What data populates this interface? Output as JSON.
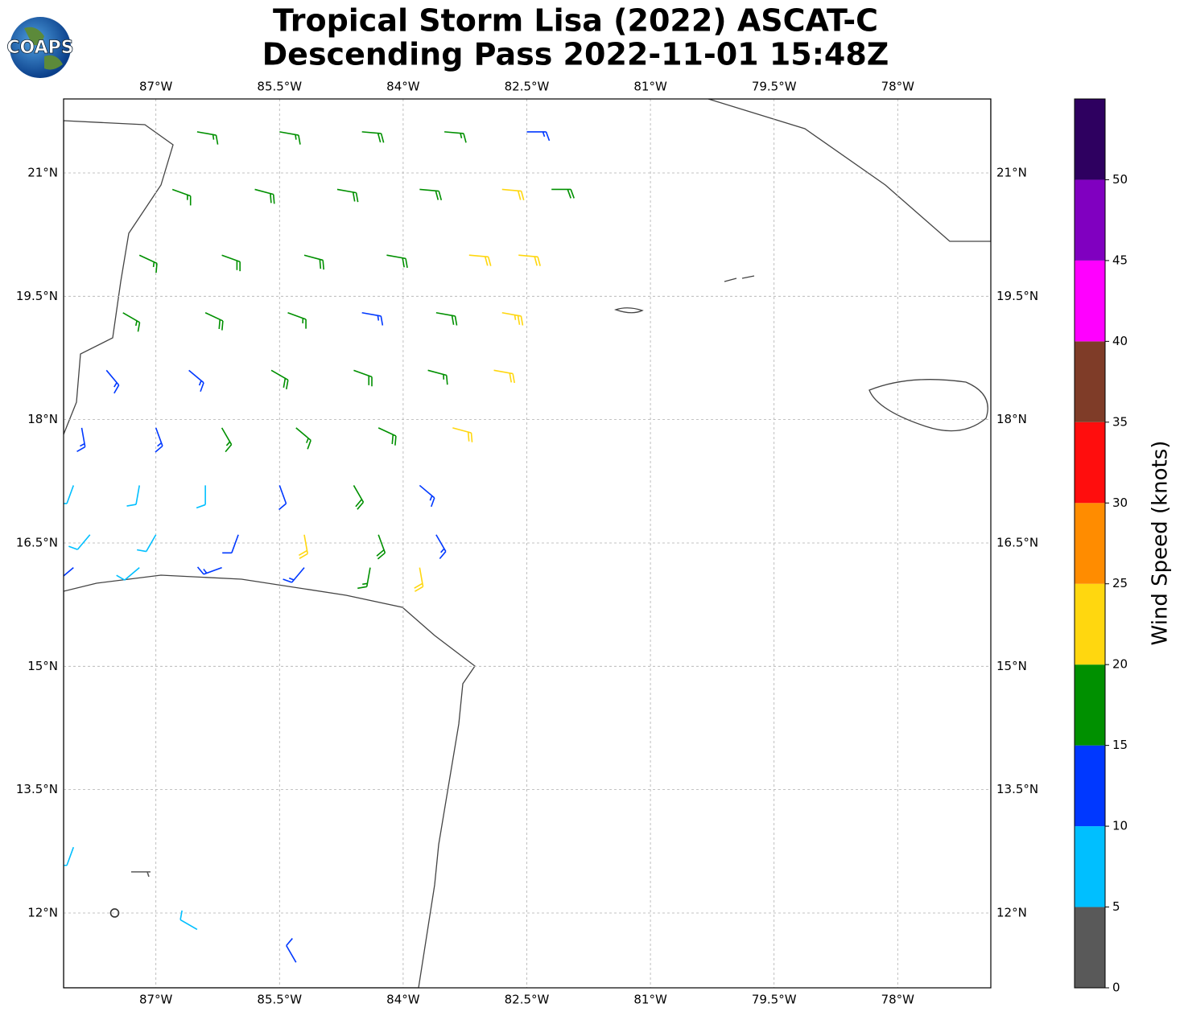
{
  "chart_data": {
    "type": "barbs",
    "title": "Tropical Storm Lisa (2022) ASCAT-C",
    "subtitle": "Descending Pass 2022-11-01 15:48Z",
    "logo_text": "COAPS",
    "xlim": [
      -88.12,
      -76.87
    ],
    "ylim": [
      11.09,
      21.9
    ],
    "xticks": [
      {
        "value": -87,
        "label": "87°W"
      },
      {
        "value": -85.5,
        "label": "85.5°W"
      },
      {
        "value": -84,
        "label": "84°W"
      },
      {
        "value": -82.5,
        "label": "82.5°W"
      },
      {
        "value": -81,
        "label": "81°W"
      },
      {
        "value": -79.5,
        "label": "79.5°W"
      },
      {
        "value": -78,
        "label": "78°W"
      }
    ],
    "yticks": [
      {
        "value": 21,
        "label": "21°N"
      },
      {
        "value": 19.5,
        "label": "19.5°N"
      },
      {
        "value": 18,
        "label": "18°N"
      },
      {
        "value": 16.5,
        "label": "16.5°N"
      },
      {
        "value": 15,
        "label": "15°N"
      },
      {
        "value": 13.5,
        "label": "13.5°N"
      },
      {
        "value": 12,
        "label": "12°N"
      }
    ],
    "grid": true,
    "colorbar": {
      "label": "Wind Speed (knots)",
      "lim": [
        0,
        55
      ],
      "ticks": [
        0,
        5,
        10,
        15,
        20,
        25,
        30,
        35,
        40,
        45,
        50
      ],
      "colors": [
        "#595959",
        "#00bfff",
        "#0038ff",
        "#009000",
        "#ffd70f",
        "#ff8c00",
        "#ff0d0d",
        "#7f3c28",
        "#ff00ff",
        "#8000c0",
        "#2e0060"
      ]
    },
    "barbs": [
      {
        "lon": -86.5,
        "lat": 21.5,
        "speed": 16,
        "dir": 100
      },
      {
        "lon": -85.5,
        "lat": 21.5,
        "speed": 17,
        "dir": 100
      },
      {
        "lon": -84.5,
        "lat": 21.5,
        "speed": 18,
        "dir": 95
      },
      {
        "lon": -83.5,
        "lat": 21.5,
        "speed": 17,
        "dir": 95
      },
      {
        "lon": -82.5,
        "lat": 21.5,
        "speed": 14,
        "dir": 90
      },
      {
        "lon": -86.8,
        "lat": 20.8,
        "speed": 17,
        "dir": 110
      },
      {
        "lon": -85.8,
        "lat": 20.8,
        "speed": 18,
        "dir": 105
      },
      {
        "lon": -84.8,
        "lat": 20.8,
        "speed": 18,
        "dir": 100
      },
      {
        "lon": -83.8,
        "lat": 20.8,
        "speed": 19,
        "dir": 95
      },
      {
        "lon": -82.8,
        "lat": 20.8,
        "speed": 21,
        "dir": 95
      },
      {
        "lon": -82.2,
        "lat": 20.8,
        "speed": 18,
        "dir": 90
      },
      {
        "lon": -87.2,
        "lat": 20.0,
        "speed": 16,
        "dir": 115
      },
      {
        "lon": -86.2,
        "lat": 20.0,
        "speed": 18,
        "dir": 110
      },
      {
        "lon": -85.2,
        "lat": 20.0,
        "speed": 18,
        "dir": 105
      },
      {
        "lon": -84.2,
        "lat": 20.0,
        "speed": 19,
        "dir": 100
      },
      {
        "lon": -83.2,
        "lat": 20.0,
        "speed": 20,
        "dir": 95
      },
      {
        "lon": -82.6,
        "lat": 20.0,
        "speed": 22,
        "dir": 95
      },
      {
        "lon": -87.4,
        "lat": 19.3,
        "speed": 17,
        "dir": 120
      },
      {
        "lon": -86.4,
        "lat": 19.3,
        "speed": 18,
        "dir": 115
      },
      {
        "lon": -85.4,
        "lat": 19.3,
        "speed": 17,
        "dir": 110
      },
      {
        "lon": -84.5,
        "lat": 19.3,
        "speed": 13,
        "dir": 100
      },
      {
        "lon": -83.6,
        "lat": 19.3,
        "speed": 19,
        "dir": 100
      },
      {
        "lon": -82.8,
        "lat": 19.3,
        "speed": 23,
        "dir": 100
      },
      {
        "lon": -87.6,
        "lat": 18.6,
        "speed": 13,
        "dir": 140
      },
      {
        "lon": -86.6,
        "lat": 18.6,
        "speed": 14,
        "dir": 130
      },
      {
        "lon": -85.6,
        "lat": 18.6,
        "speed": 18,
        "dir": 120
      },
      {
        "lon": -84.6,
        "lat": 18.6,
        "speed": 18,
        "dir": 110
      },
      {
        "lon": -83.7,
        "lat": 18.6,
        "speed": 17,
        "dir": 105
      },
      {
        "lon": -82.9,
        "lat": 18.6,
        "speed": 22,
        "dir": 100
      },
      {
        "lon": -87.9,
        "lat": 17.9,
        "speed": 13,
        "dir": 170
      },
      {
        "lon": -87.0,
        "lat": 17.9,
        "speed": 13,
        "dir": 160
      },
      {
        "lon": -86.2,
        "lat": 17.9,
        "speed": 15,
        "dir": 150
      },
      {
        "lon": -85.3,
        "lat": 17.9,
        "speed": 17,
        "dir": 130
      },
      {
        "lon": -84.3,
        "lat": 17.9,
        "speed": 18,
        "dir": 115
      },
      {
        "lon": -83.4,
        "lat": 17.9,
        "speed": 21,
        "dir": 105
      },
      {
        "lon": -88.0,
        "lat": 17.2,
        "speed": 8,
        "dir": 200
      },
      {
        "lon": -87.2,
        "lat": 17.2,
        "speed": 9,
        "dir": 190
      },
      {
        "lon": -86.4,
        "lat": 17.2,
        "speed": 8,
        "dir": 180
      },
      {
        "lon": -85.5,
        "lat": 17.2,
        "speed": 11,
        "dir": 160
      },
      {
        "lon": -84.6,
        "lat": 17.2,
        "speed": 19,
        "dir": 150
      },
      {
        "lon": -83.8,
        "lat": 17.2,
        "speed": 14,
        "dir": 130
      },
      {
        "lon": -87.8,
        "lat": 16.6,
        "speed": 9,
        "dir": 220
      },
      {
        "lon": -87.0,
        "lat": 16.6,
        "speed": 8,
        "dir": 210
      },
      {
        "lon": -86.0,
        "lat": 16.6,
        "speed": 12,
        "dir": 200
      },
      {
        "lon": -85.2,
        "lat": 16.6,
        "speed": 22,
        "dir": 170
      },
      {
        "lon": -84.3,
        "lat": 16.6,
        "speed": 18,
        "dir": 160
      },
      {
        "lon": -83.6,
        "lat": 16.6,
        "speed": 14,
        "dir": 150
      },
      {
        "lon": -88.0,
        "lat": 16.2,
        "speed": 12,
        "dir": 230
      },
      {
        "lon": -87.2,
        "lat": 16.2,
        "speed": 8,
        "dir": 230
      },
      {
        "lon": -86.2,
        "lat": 16.2,
        "speed": 13,
        "dir": 250
      },
      {
        "lon": -85.2,
        "lat": 16.2,
        "speed": 13,
        "dir": 220
      },
      {
        "lon": -84.4,
        "lat": 16.2,
        "speed": 17,
        "dir": 190
      },
      {
        "lon": -83.8,
        "lat": 16.2,
        "speed": 20,
        "dir": 170
      },
      {
        "lon": -88.0,
        "lat": 12.8,
        "speed": 8,
        "dir": 200
      },
      {
        "lon": -87.3,
        "lat": 12.5,
        "speed": 3,
        "dir": 90
      },
      {
        "lon": -87.5,
        "lat": 12.0,
        "speed": 1,
        "dir": 0
      },
      {
        "lon": -86.5,
        "lat": 11.8,
        "speed": 8,
        "dir": 300
      },
      {
        "lon": -85.3,
        "lat": 11.4,
        "speed": 12,
        "dir": 330
      }
    ]
  }
}
